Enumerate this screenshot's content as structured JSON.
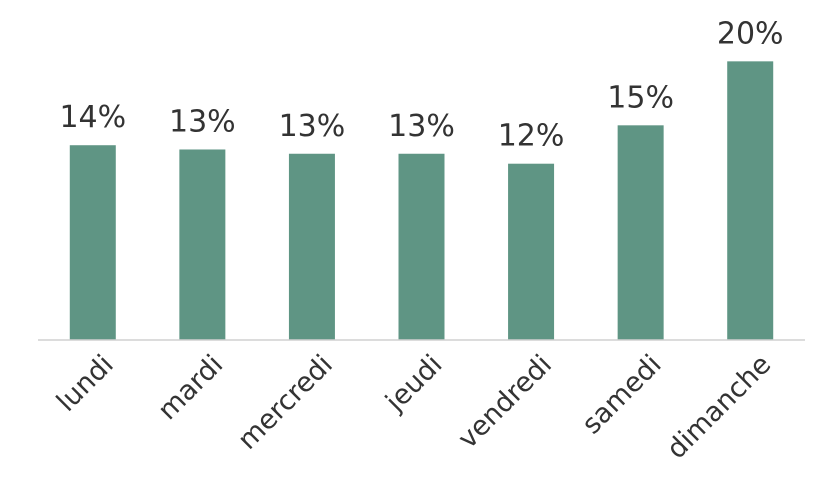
{
  "chart_data": {
    "type": "bar",
    "categories": [
      "lundi",
      "mardi",
      "mercredi",
      "jeudi",
      "vendredi",
      "samedi",
      "dimanche"
    ],
    "values": [
      13.7,
      13.4,
      13.1,
      13.1,
      12.4,
      15.1,
      19.6
    ],
    "value_labels": [
      "14%",
      "13%",
      "13%",
      "13%",
      "12%",
      "15%",
      "20%"
    ],
    "color": "#5f9584",
    "ylim": [
      0,
      23
    ]
  }
}
